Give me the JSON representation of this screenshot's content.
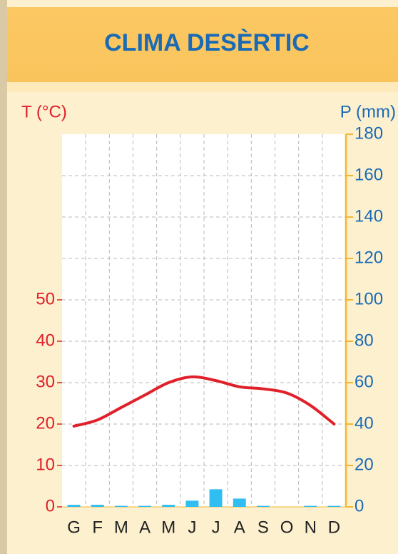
{
  "chart_data": {
    "type": "climograph",
    "title": "CLIMA DESÈRTIC",
    "ylabel": "T (°C)",
    "y2label": "P (mm)",
    "categories": [
      "G",
      "F",
      "M",
      "A",
      "M",
      "J",
      "J",
      "A",
      "S",
      "O",
      "N",
      "D"
    ],
    "series": [
      {
        "name": "P (mm)",
        "type": "bar",
        "axis": "y2",
        "color": "#2fbdf2",
        "values": [
          1,
          1,
          0.5,
          0.5,
          1,
          3,
          8.5,
          4,
          0.5,
          0,
          0.5,
          0.5
        ]
      },
      {
        "name": "T (°C)",
        "type": "line",
        "axis": "y",
        "color": "#e0202a",
        "values": [
          19.5,
          21,
          24,
          27,
          30,
          31.4,
          30.5,
          29,
          28.5,
          27.5,
          24.5,
          20
        ]
      }
    ],
    "ylim": [
      0,
      90
    ],
    "yticks": [
      0,
      10,
      20,
      30,
      40,
      50
    ],
    "y2lim": [
      0,
      180
    ],
    "y2ticks": [
      0,
      20,
      40,
      60,
      80,
      100,
      120,
      140,
      160,
      180
    ],
    "grid": true
  }
}
